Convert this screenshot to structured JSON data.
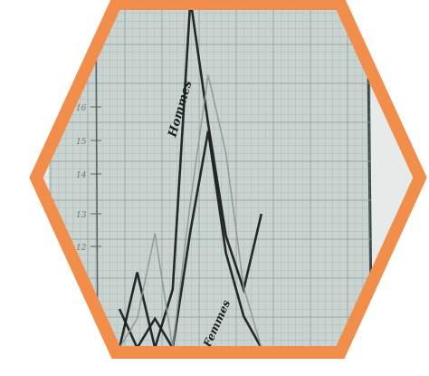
{
  "figure": {
    "frame_color": "#f28e4b",
    "paper_color": "#c9d3cf",
    "grid_color": "#8fa4a0",
    "ink_color": "#1c1f22",
    "pencil_color": "#8d9591"
  },
  "chart_data": {
    "type": "line",
    "title": "",
    "xlabel": "",
    "ylabel": "",
    "y_tick_labels": [
      "12",
      "13",
      "14",
      "15",
      "16"
    ],
    "grid": true,
    "series": [
      {
        "name": "Hommes",
        "style": "ink",
        "x": [
          0,
          1,
          2,
          3,
          4,
          5,
          6,
          7,
          8
        ],
        "y": [
          0.0,
          3.1,
          0.0,
          2.4,
          14.3,
          9.2,
          4.6,
          2.4,
          5.5
        ]
      },
      {
        "name": "Femmes",
        "style": "ink",
        "x": [
          0,
          1,
          2,
          3,
          4,
          5,
          6,
          7,
          8
        ],
        "y": [
          1.6,
          0.0,
          1.2,
          0.0,
          4.8,
          8.9,
          3.9,
          1.3,
          0.0
        ]
      },
      {
        "name": "",
        "style": "pencil",
        "x": [
          0,
          1,
          2,
          3,
          4,
          5,
          6,
          7,
          8
        ],
        "y": [
          0.0,
          1.2,
          4.7,
          0.0,
          6.0,
          11.2,
          8.0,
          2.5,
          0.0
        ]
      }
    ],
    "series_labels": [
      {
        "series": "Hommes",
        "text": "Hommes"
      },
      {
        "series": "Femmes",
        "text": "Femmes"
      }
    ]
  }
}
